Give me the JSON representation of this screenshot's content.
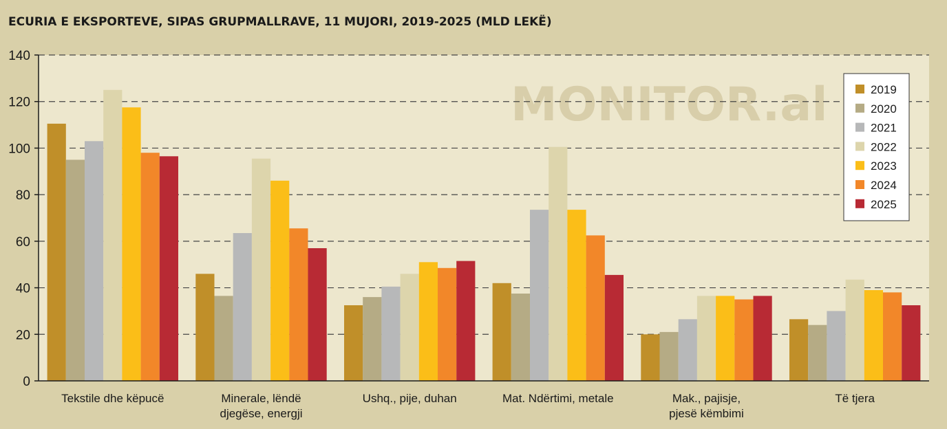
{
  "chart_data": {
    "type": "bar",
    "title": "ECURIA E EKSPORTEVE, SIPAS GRUPMALLRAVE, 11 MUJORI, 2019-2025 (MLD LEKË)",
    "watermark": "MONITOR.al",
    "xlabel": "",
    "ylabel": "",
    "ylim": [
      0,
      140
    ],
    "yticks": [
      "0",
      "20",
      "40",
      "60",
      "80",
      "100",
      "120",
      "140"
    ],
    "grid": true,
    "legend_position": "top-right",
    "categories": [
      [
        "Tekstile dhe këpucë"
      ],
      [
        "Minerale, lëndë",
        "djegëse, energji"
      ],
      [
        "Ushq., pije, duhan"
      ],
      [
        "Mat. Ndërtimi, metale"
      ],
      [
        "Mak., pajisje,",
        "pjesë këmbimi"
      ],
      [
        "Të tjera"
      ]
    ],
    "series": [
      {
        "name": "2019",
        "color": "#c08f29",
        "values": [
          110.5,
          46,
          32.5,
          42,
          20,
          26.5
        ]
      },
      {
        "name": "2020",
        "color": "#b5ab85",
        "values": [
          95,
          36.5,
          36,
          37.5,
          21,
          24
        ]
      },
      {
        "name": "2021",
        "color": "#b7b8b9",
        "values": [
          103,
          63.5,
          40.5,
          73.5,
          26.5,
          30
        ]
      },
      {
        "name": "2022",
        "color": "#ddd5ac",
        "values": [
          125,
          95.5,
          46,
          100.5,
          36.5,
          43.5
        ]
      },
      {
        "name": "2023",
        "color": "#fbbe18",
        "values": [
          117.5,
          86,
          51,
          73.5,
          36.5,
          39
        ]
      },
      {
        "name": "2024",
        "color": "#f28729",
        "values": [
          98,
          65.5,
          48.5,
          62.5,
          35,
          38
        ]
      },
      {
        "name": "2025",
        "color": "#b82a34",
        "values": [
          96.5,
          57,
          51.5,
          45.5,
          36.5,
          32.5
        ]
      }
    ]
  }
}
